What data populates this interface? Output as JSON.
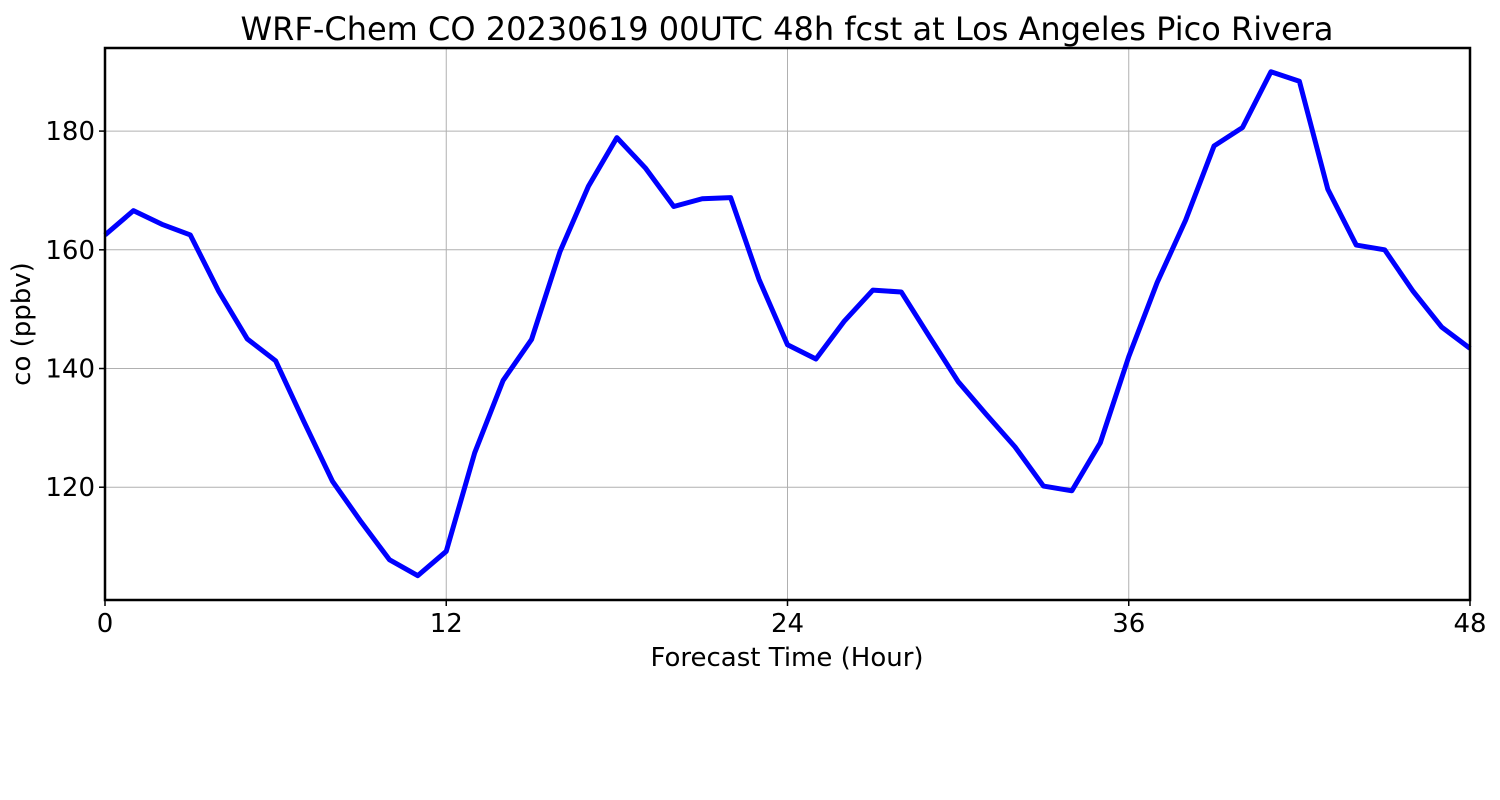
{
  "chart_data": {
    "type": "line",
    "title": "WRF-Chem CO  20230619 00UTC 48h fcst at Los Angeles Pico Rivera",
    "xlabel": "Forecast Time (Hour)",
    "ylabel": "co  (ppbv)",
    "xlim": [
      0,
      48
    ],
    "ylim": [
      101,
      194
    ],
    "xticks": [
      0,
      12,
      24,
      36,
      48
    ],
    "xtick_labels": [
      "0",
      "12",
      "24",
      "36",
      "48"
    ],
    "yticks": [
      120,
      140,
      160,
      180
    ],
    "ytick_labels": [
      "120",
      "140",
      "160",
      "180"
    ],
    "grid": true,
    "legend": false,
    "x": [
      0,
      1,
      2,
      3,
      4,
      5,
      6,
      7,
      8,
      9,
      10,
      11,
      12,
      13,
      14,
      15,
      16,
      17,
      18,
      19,
      20,
      21,
      22,
      23,
      24,
      25,
      26,
      27,
      28,
      29,
      30,
      31,
      32,
      33,
      34,
      35,
      36,
      37,
      38,
      39,
      40,
      41,
      42,
      43,
      44,
      45,
      46,
      47,
      48
    ],
    "series": [
      {
        "color": "#0000ff",
        "values": [
          162.5,
          166.6,
          164.3,
          162.5,
          153.0,
          145.0,
          141.3,
          131.0,
          121.0,
          114.2,
          107.8,
          105.1,
          109.2,
          125.8,
          138.0,
          144.9,
          159.7,
          170.7,
          178.9,
          173.8,
          167.3,
          168.6,
          168.8,
          155.0,
          144.0,
          141.6,
          148.0,
          153.2,
          152.9,
          145.3,
          137.8,
          132.2,
          126.8,
          120.2,
          119.4,
          127.5,
          142.0,
          154.5,
          165.0,
          177.5,
          180.6,
          190.0,
          188.4,
          170.2,
          160.8,
          160.0,
          153.0,
          147.0,
          143.4
        ]
      }
    ]
  }
}
